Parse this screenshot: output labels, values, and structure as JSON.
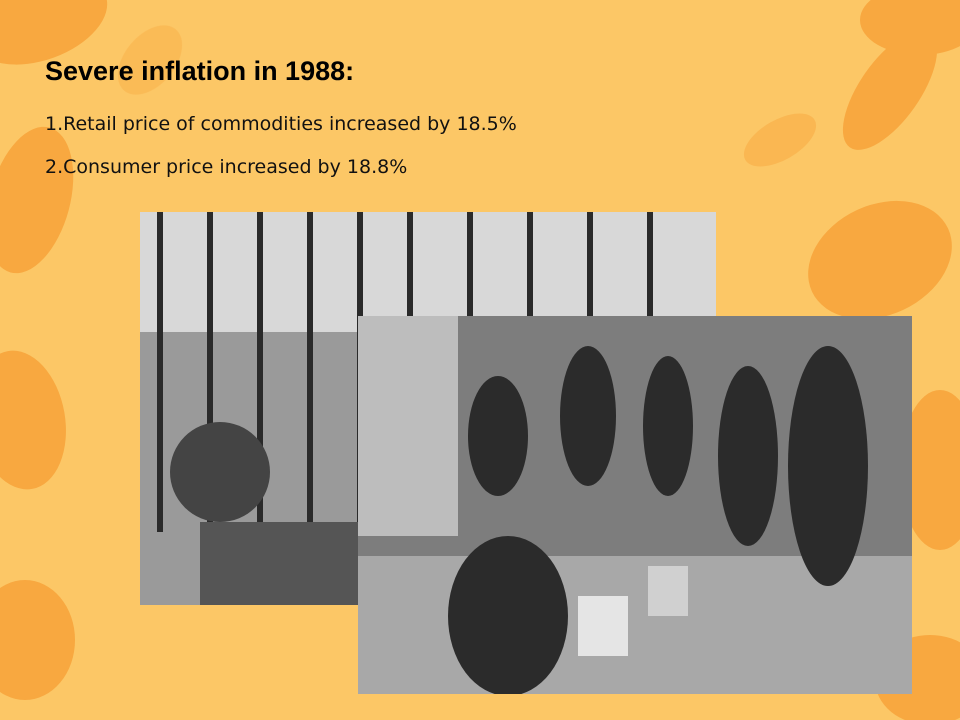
{
  "header": {
    "title": "Severe inflation in 1988:"
  },
  "items": [
    "1.Retail price of commodities increased by 18.5%",
    "2.Consumer price increased by 18.8%"
  ]
}
